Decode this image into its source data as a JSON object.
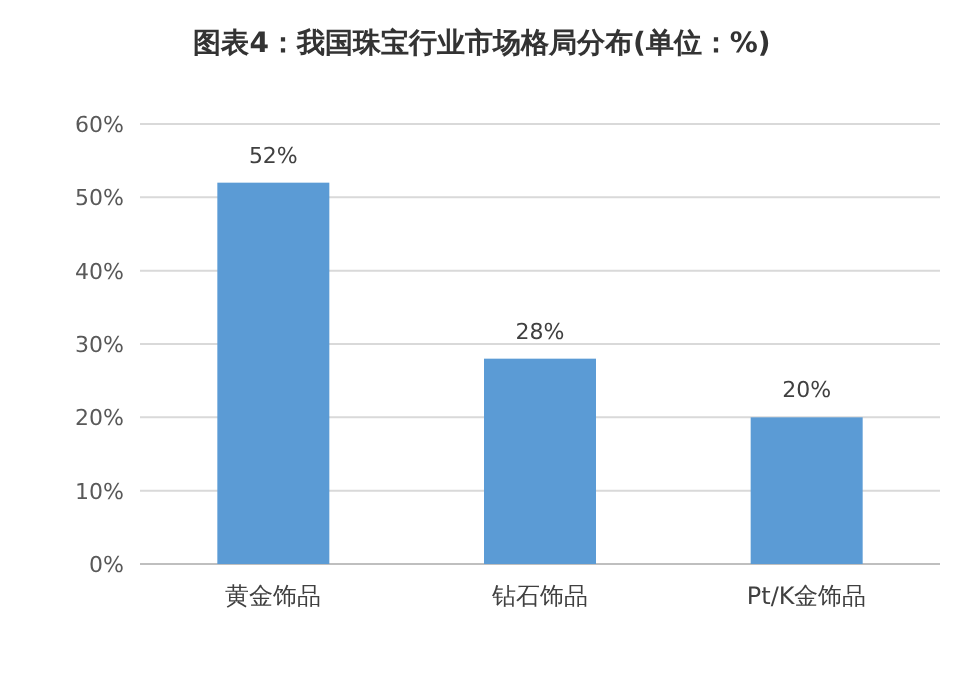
{
  "chart_data": {
    "type": "bar",
    "title": "图表4：我国珠宝行业市场格局分布(单位：%)",
    "categories": [
      "黄金饰品",
      "钻石饰品",
      "Pt/K金饰品"
    ],
    "values": [
      52,
      28,
      20
    ],
    "color": "#5b9bd5",
    "value_labels": [
      "52%",
      "28%",
      "20%"
    ],
    "ylim": [
      0,
      60
    ],
    "yticks": [
      {
        "value": 0,
        "label": "0%"
      },
      {
        "value": 10,
        "label": "10%"
      },
      {
        "value": 20,
        "label": "20%"
      },
      {
        "value": 30,
        "label": "30%"
      },
      {
        "value": 40,
        "label": "40%"
      },
      {
        "value": 50,
        "label": "50%"
      },
      {
        "value": 60,
        "label": "60%"
      }
    ],
    "grid": "y"
  }
}
